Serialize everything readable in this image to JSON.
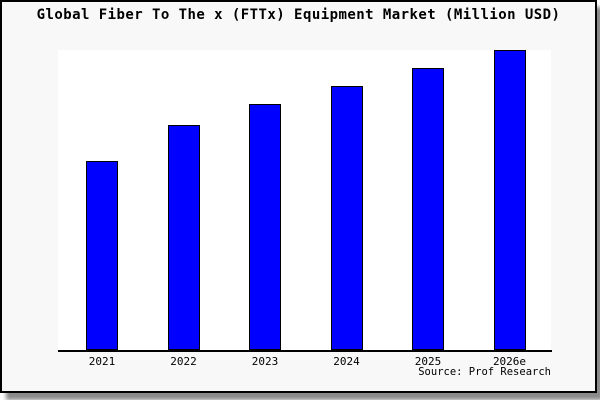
{
  "chart": {
    "title": "Global Fiber To The x (FTTx) Equipment Market (Million USD)",
    "source": "Source: Prof Research",
    "colors": {
      "bar_fill": "#0000ff",
      "bar_border": "#000000",
      "plot_background": "#ffffff",
      "frame_background": "#f8f8f8",
      "frame_border": "#000000",
      "shadow": "#8a8a8a",
      "text": "#000000"
    }
  },
  "chart_data": {
    "type": "bar",
    "title": "Global Fiber To The x (FTTx) Equipment Market (Million USD)",
    "categories": [
      "2021",
      "2022",
      "2023",
      "2024",
      "2025",
      "2026e"
    ],
    "values": [
      63,
      75,
      82,
      88,
      94,
      100
    ],
    "xlabel": "",
    "ylabel": "",
    "ylim": [
      0,
      100
    ],
    "y_axis_labels_visible": false,
    "grid": false,
    "legend": false,
    "source_note": "Source: Prof Research"
  }
}
